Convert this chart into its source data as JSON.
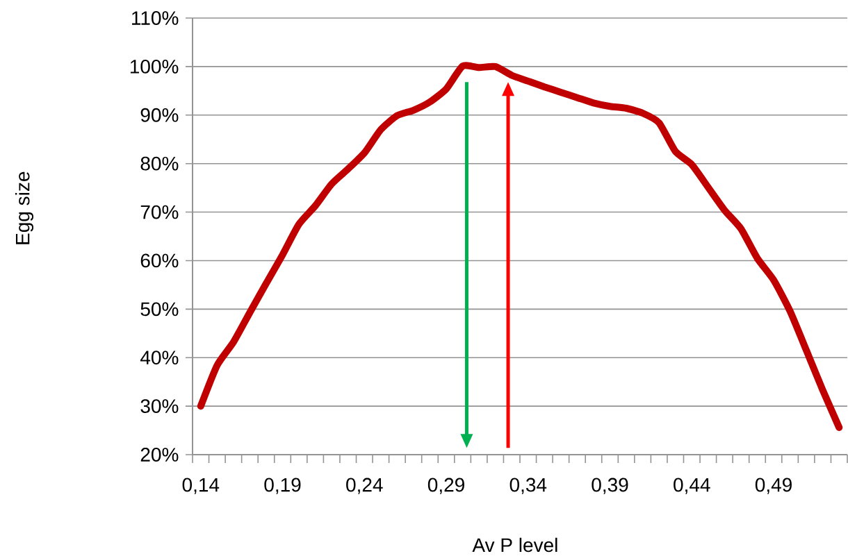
{
  "chart_data": {
    "type": "line",
    "xlabel": "Av P level",
    "ylabel": "Egg size",
    "categories": [
      "0,14",
      null,
      null,
      null,
      null,
      "0,19",
      null,
      null,
      null,
      null,
      "0,24",
      null,
      null,
      null,
      null,
      "0,29",
      null,
      null,
      null,
      null,
      "0,34",
      null,
      null,
      null,
      null,
      "0,39",
      null,
      null,
      null,
      null,
      "0,44",
      null,
      null,
      null,
      null,
      "0,49",
      null,
      null,
      null,
      null
    ],
    "series": [
      {
        "color": "#c00000",
        "values": [
          30,
          38.4,
          43.2,
          49.3,
          55.3,
          61.2,
          67.5,
          71.3,
          75.8,
          78.9,
          82.2,
          87,
          89.9,
          91,
          92.7,
          95.4,
          100.1,
          99.8,
          100,
          98.2,
          97,
          95.8,
          94.7,
          93.6,
          92.5,
          91.8,
          91.4,
          90.4,
          88.4,
          82.5,
          79.8,
          75.1,
          70.4,
          66.6,
          60.5,
          56,
          49.6,
          41.5,
          33.3,
          25.6
        ]
      }
    ],
    "ylim": [
      20,
      110
    ],
    "yticks": [
      {
        "value": 20,
        "label": "20%"
      },
      {
        "value": 30,
        "label": "30%"
      },
      {
        "value": 40,
        "label": "40%"
      },
      {
        "value": 50,
        "label": "50%"
      },
      {
        "value": 60,
        "label": "60%"
      },
      {
        "value": 70,
        "label": "70%"
      },
      {
        "value": 80,
        "label": "80%"
      },
      {
        "value": 90,
        "label": "90%"
      },
      {
        "value": 100,
        "label": "100%"
      },
      {
        "value": 110,
        "label": "110%"
      }
    ],
    "grid": "y",
    "marker": "none",
    "line_style": "solid"
  }
}
